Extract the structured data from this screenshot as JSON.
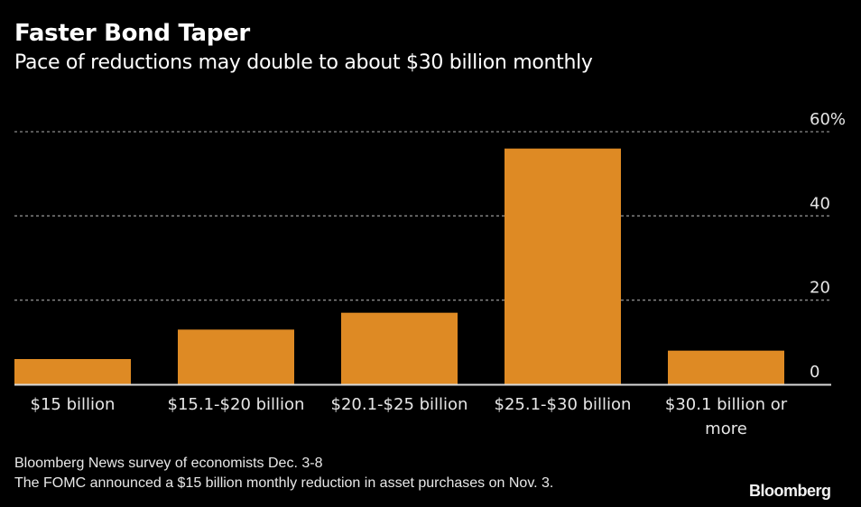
{
  "chart_data": {
    "type": "bar",
    "title": "Faster Bond Taper",
    "subtitle": "Pace of reductions may double to about $30 billion monthly",
    "categories": [
      [
        "$15 billion"
      ],
      [
        "$15.1-$20 billion"
      ],
      [
        "$20.1-$25 billion"
      ],
      [
        "$25.1-$30 billion"
      ],
      [
        "$30.1 billion or",
        "more"
      ]
    ],
    "values": [
      6,
      13,
      17,
      56,
      8
    ],
    "xlabel": "",
    "ylabel": "",
    "ylim": [
      0,
      60
    ],
    "yticks": [
      {
        "value": 0,
        "label": "0"
      },
      {
        "value": 20,
        "label": "20"
      },
      {
        "value": 40,
        "label": "40"
      },
      {
        "value": 60,
        "label": "60%"
      }
    ],
    "grid": true,
    "y_axis_side": "right",
    "bar_color": "#de8a24",
    "grid_color": "#8a8a8a",
    "baseline_color": "#d9d9d9"
  },
  "footer": {
    "source_lines": [
      "Bloomberg News survey of economists Dec. 3-8",
      "The FOMC announced a $15 billion monthly reduction in asset purchases on Nov. 3."
    ],
    "brand": "Bloomberg"
  }
}
